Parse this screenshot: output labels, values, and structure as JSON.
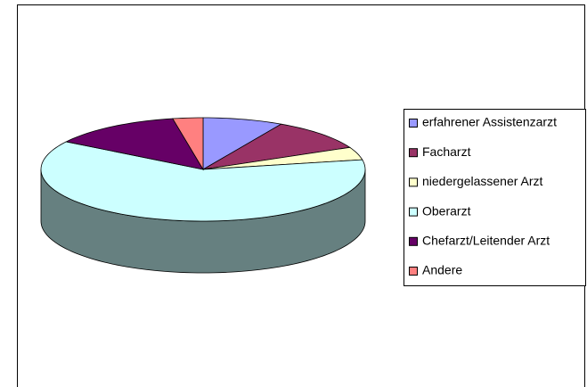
{
  "chart_data": {
    "type": "pie3d",
    "categories": [
      "erfahrener Assistenzarzt",
      "Facharzt",
      "niedergelassener Arzt",
      "Oberarzt",
      "Chefarzt/Leitender Arzt",
      "Andere"
    ],
    "values": [
      8,
      10,
      4,
      62,
      13,
      3
    ],
    "colors": [
      "#9999ff",
      "#993366",
      "#ffffcc",
      "#ccffff",
      "#660066",
      "#ff8080"
    ],
    "legend": "right"
  }
}
